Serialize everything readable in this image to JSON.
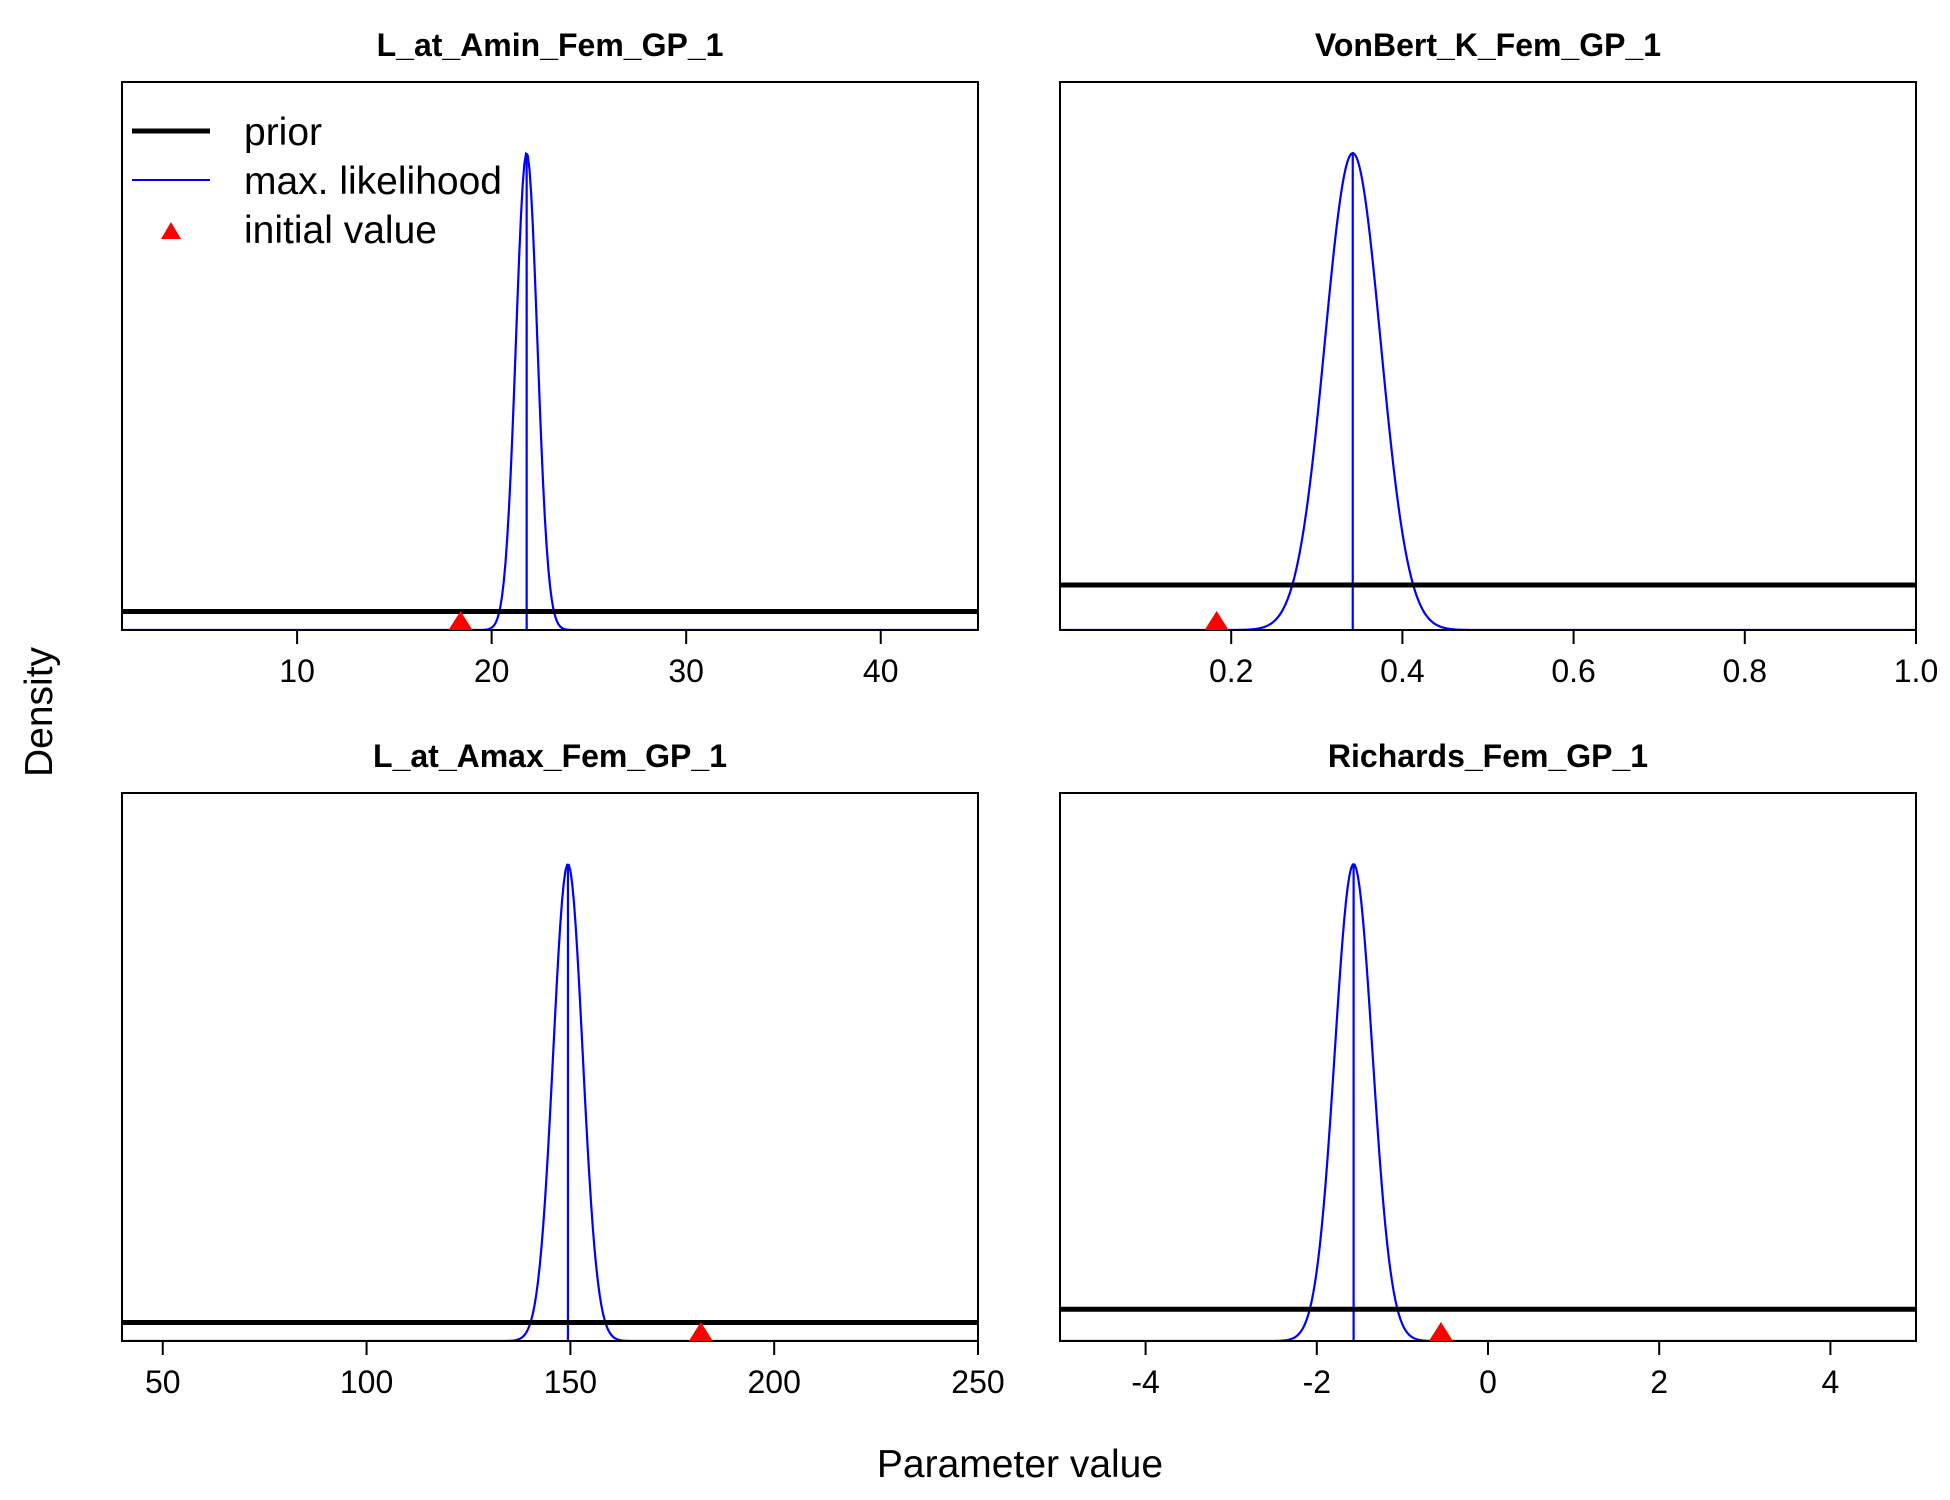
{
  "colors": {
    "prior": "#000000",
    "max_likelihood": "#0000ff",
    "initial_value": "#ff0000"
  },
  "figure": {
    "ylabel": "Density",
    "xlabel": "Parameter value"
  },
  "legend": {
    "placement": "top-left of first panel",
    "entries": [
      {
        "label": "prior",
        "symbol": "thick-line",
        "color": "#000000"
      },
      {
        "label": "max. likelihood",
        "symbol": "thin-line",
        "color": "#0000ff"
      },
      {
        "label": "initial value",
        "symbol": "triangle",
        "color": "#ff0000"
      }
    ]
  },
  "chart_data": [
    {
      "type": "line",
      "title": "L_at_Amin_Fem_GP_1",
      "xlim": [
        1,
        45
      ],
      "xticks": [
        10,
        20,
        30,
        40
      ],
      "xtick_labels": [
        "10",
        "20",
        "30",
        "40"
      ],
      "ylim": [
        0,
        1
      ],
      "prior_density": 0.035,
      "max_likelihood": {
        "mean": 21.8,
        "sd": 0.55,
        "peak": 0.9
      },
      "initial_value": 18.4
    },
    {
      "type": "line",
      "title": "VonBert_K_Fem_GP_1",
      "xlim": [
        0,
        1
      ],
      "xticks": [
        0.2,
        0.4,
        0.6,
        0.8,
        1.0
      ],
      "xtick_labels": [
        "0.2",
        "0.4",
        "0.6",
        "0.8",
        "1.0"
      ],
      "ylim": [
        0,
        1
      ],
      "prior_density": 0.085,
      "max_likelihood": {
        "mean": 0.342,
        "sd": 0.0325,
        "peak": 0.9
      },
      "initial_value": 0.183
    },
    {
      "type": "line",
      "title": "L_at_Amax_Fem_GP_1",
      "xlim": [
        40,
        250
      ],
      "xticks": [
        50,
        100,
        150,
        200,
        250
      ],
      "xtick_labels": [
        "50",
        "100",
        "150",
        "200",
        "250"
      ],
      "ylim": [
        0,
        1
      ],
      "prior_density": 0.035,
      "max_likelihood": {
        "mean": 149.4,
        "sd": 3.6,
        "peak": 0.9
      },
      "initial_value": 182
    },
    {
      "type": "line",
      "title": "Richards_Fem_GP_1",
      "xlim": [
        -5,
        5
      ],
      "xticks": [
        -4,
        -2,
        0,
        2,
        4
      ],
      "xtick_labels": [
        "-4",
        "-2",
        "0",
        "2",
        "4"
      ],
      "ylim": [
        0,
        1
      ],
      "prior_density": 0.06,
      "max_likelihood": {
        "mean": -1.57,
        "sd": 0.22,
        "peak": 0.9
      },
      "initial_value": -0.55
    }
  ]
}
